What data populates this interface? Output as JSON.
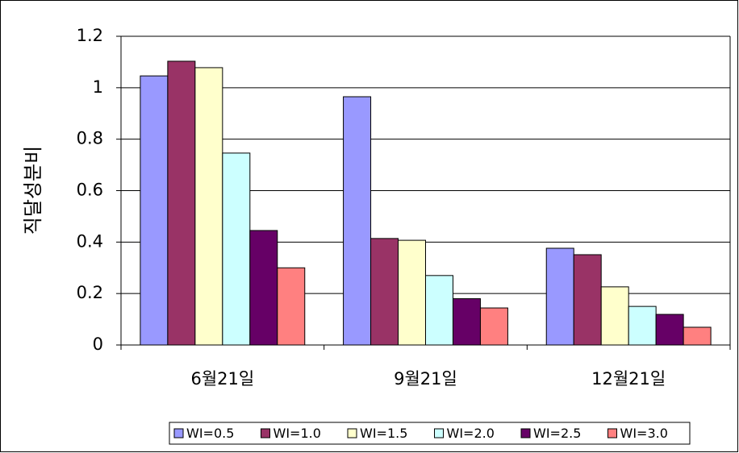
{
  "chart_data": {
    "type": "bar",
    "y_label": "직달성분비",
    "categories": [
      "6월21일",
      "9월21일",
      "12월21일"
    ],
    "series": [
      {
        "name": "WI=0.5",
        "color": "#9999ff",
        "values": [
          1.046,
          0.965,
          0.376
        ]
      },
      {
        "name": "WI=1.0",
        "color": "#993366",
        "values": [
          1.103,
          0.414,
          0.351
        ]
      },
      {
        "name": "WI=1.5",
        "color": "#ffffcc",
        "values": [
          1.078,
          0.407,
          0.226
        ]
      },
      {
        "name": "WI=2.0",
        "color": "#ccffff",
        "values": [
          0.746,
          0.27,
          0.15
        ]
      },
      {
        "name": "WI=2.5",
        "color": "#660066",
        "values": [
          0.445,
          0.18,
          0.119
        ]
      },
      {
        "name": "WI=3.0",
        "color": "#ff8080",
        "values": [
          0.3,
          0.144,
          0.069
        ]
      }
    ],
    "ylim": [
      0,
      1.2
    ],
    "yticks": [
      0,
      0.2,
      0.4,
      0.6,
      0.8,
      1,
      1.2
    ],
    "grid": true,
    "legend": "bottom"
  }
}
